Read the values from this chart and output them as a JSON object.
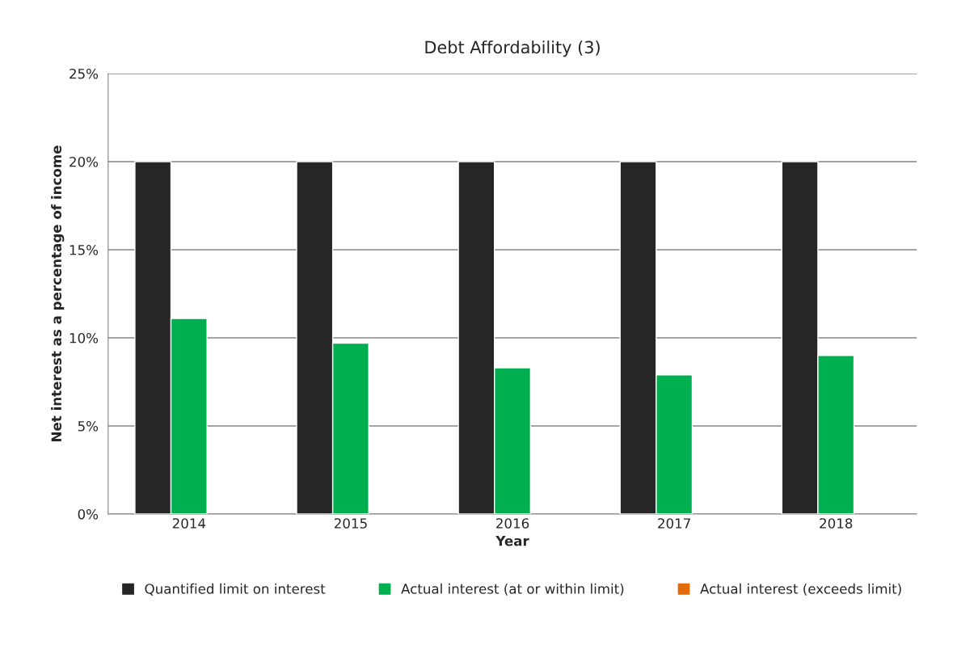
{
  "chart_data": {
    "type": "bar",
    "title": "Debt Affordability (3)",
    "xlabel": "Year",
    "ylabel": "Net interest as a percentage of income",
    "categories": [
      "2014",
      "2015",
      "2016",
      "2017",
      "2018"
    ],
    "series": [
      {
        "name": "Quantified limit on interest",
        "color": "#262626",
        "values": [
          20,
          20,
          20,
          20,
          20
        ]
      },
      {
        "name": "Actual interest (at or within limit)",
        "color": "#00b050",
        "values": [
          11.1,
          9.7,
          8.3,
          7.9,
          9.0
        ]
      },
      {
        "name": "Actual interest (exceeds limit)",
        "color": "#e36c09",
        "values": [
          null,
          null,
          null,
          null,
          null
        ]
      }
    ],
    "ylim": [
      0,
      25
    ],
    "yticks": [
      {
        "value": 0,
        "label": "0%"
      },
      {
        "value": 5,
        "label": "5%"
      },
      {
        "value": 10,
        "label": "10%"
      },
      {
        "value": 15,
        "label": "15%"
      },
      {
        "value": 20,
        "label": "20%"
      },
      {
        "value": 25,
        "label": "25%"
      }
    ],
    "grid": "y",
    "legend": "bottom"
  }
}
